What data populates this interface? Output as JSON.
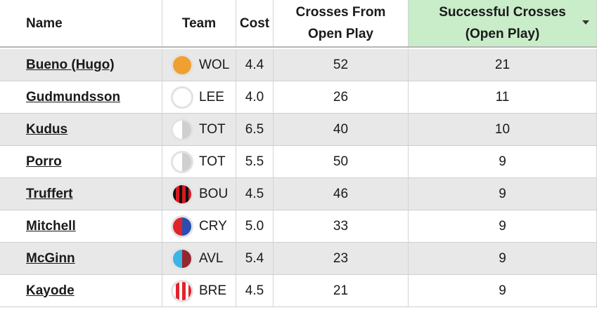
{
  "headers": {
    "name": "Name",
    "team": "Team",
    "cost": "Cost",
    "crosses_line1": "Crosses From",
    "crosses_line2": "Open Play",
    "successful_line1": "Successful Crosses",
    "successful_line2": "(Open Play)"
  },
  "rows": [
    {
      "name": "Bueno (Hugo)",
      "team": "WOL",
      "cost": "4.4",
      "crosses": "52",
      "successful": "21",
      "kit": "wolves-orange-icon"
    },
    {
      "name": "Gudmundsson",
      "team": "LEE",
      "cost": "4.0",
      "crosses": "26",
      "successful": "11",
      "kit": "leeds-white-icon"
    },
    {
      "name": "Kudus",
      "team": "TOT",
      "cost": "6.5",
      "crosses": "40",
      "successful": "10",
      "kit": "spurs-white-grey-icon"
    },
    {
      "name": "Porro",
      "team": "TOT",
      "cost": "5.5",
      "crosses": "50",
      "successful": "9",
      "kit": "spurs-white-grey-icon"
    },
    {
      "name": "Truffert",
      "team": "BOU",
      "cost": "4.5",
      "crosses": "46",
      "successful": "9",
      "kit": "bournemouth-red-black-stripes-icon"
    },
    {
      "name": "Mitchell",
      "team": "CRY",
      "cost": "5.0",
      "crosses": "33",
      "successful": "9",
      "kit": "palace-red-blue-icon"
    },
    {
      "name": "McGinn",
      "team": "AVL",
      "cost": "5.4",
      "crosses": "23",
      "successful": "9",
      "kit": "villa-claret-blue-icon"
    },
    {
      "name": "Kayode",
      "team": "BRE",
      "cost": "4.5",
      "crosses": "21",
      "successful": "9",
      "kit": "brentford-red-white-stripes-icon"
    }
  ],
  "colors": {
    "sorted_header": "#c9ecc9",
    "row_shade": "#e8e8e8",
    "wolves": "#f0a030",
    "spurs_grey": "#cfcfcf",
    "bou_red": "#d71920",
    "bou_black": "#111111",
    "cry_red": "#e0242c",
    "cry_blue": "#2b4fb0",
    "avl_claret": "#95262f",
    "avl_blue": "#3ab5e6",
    "bre_red": "#e3222c"
  }
}
